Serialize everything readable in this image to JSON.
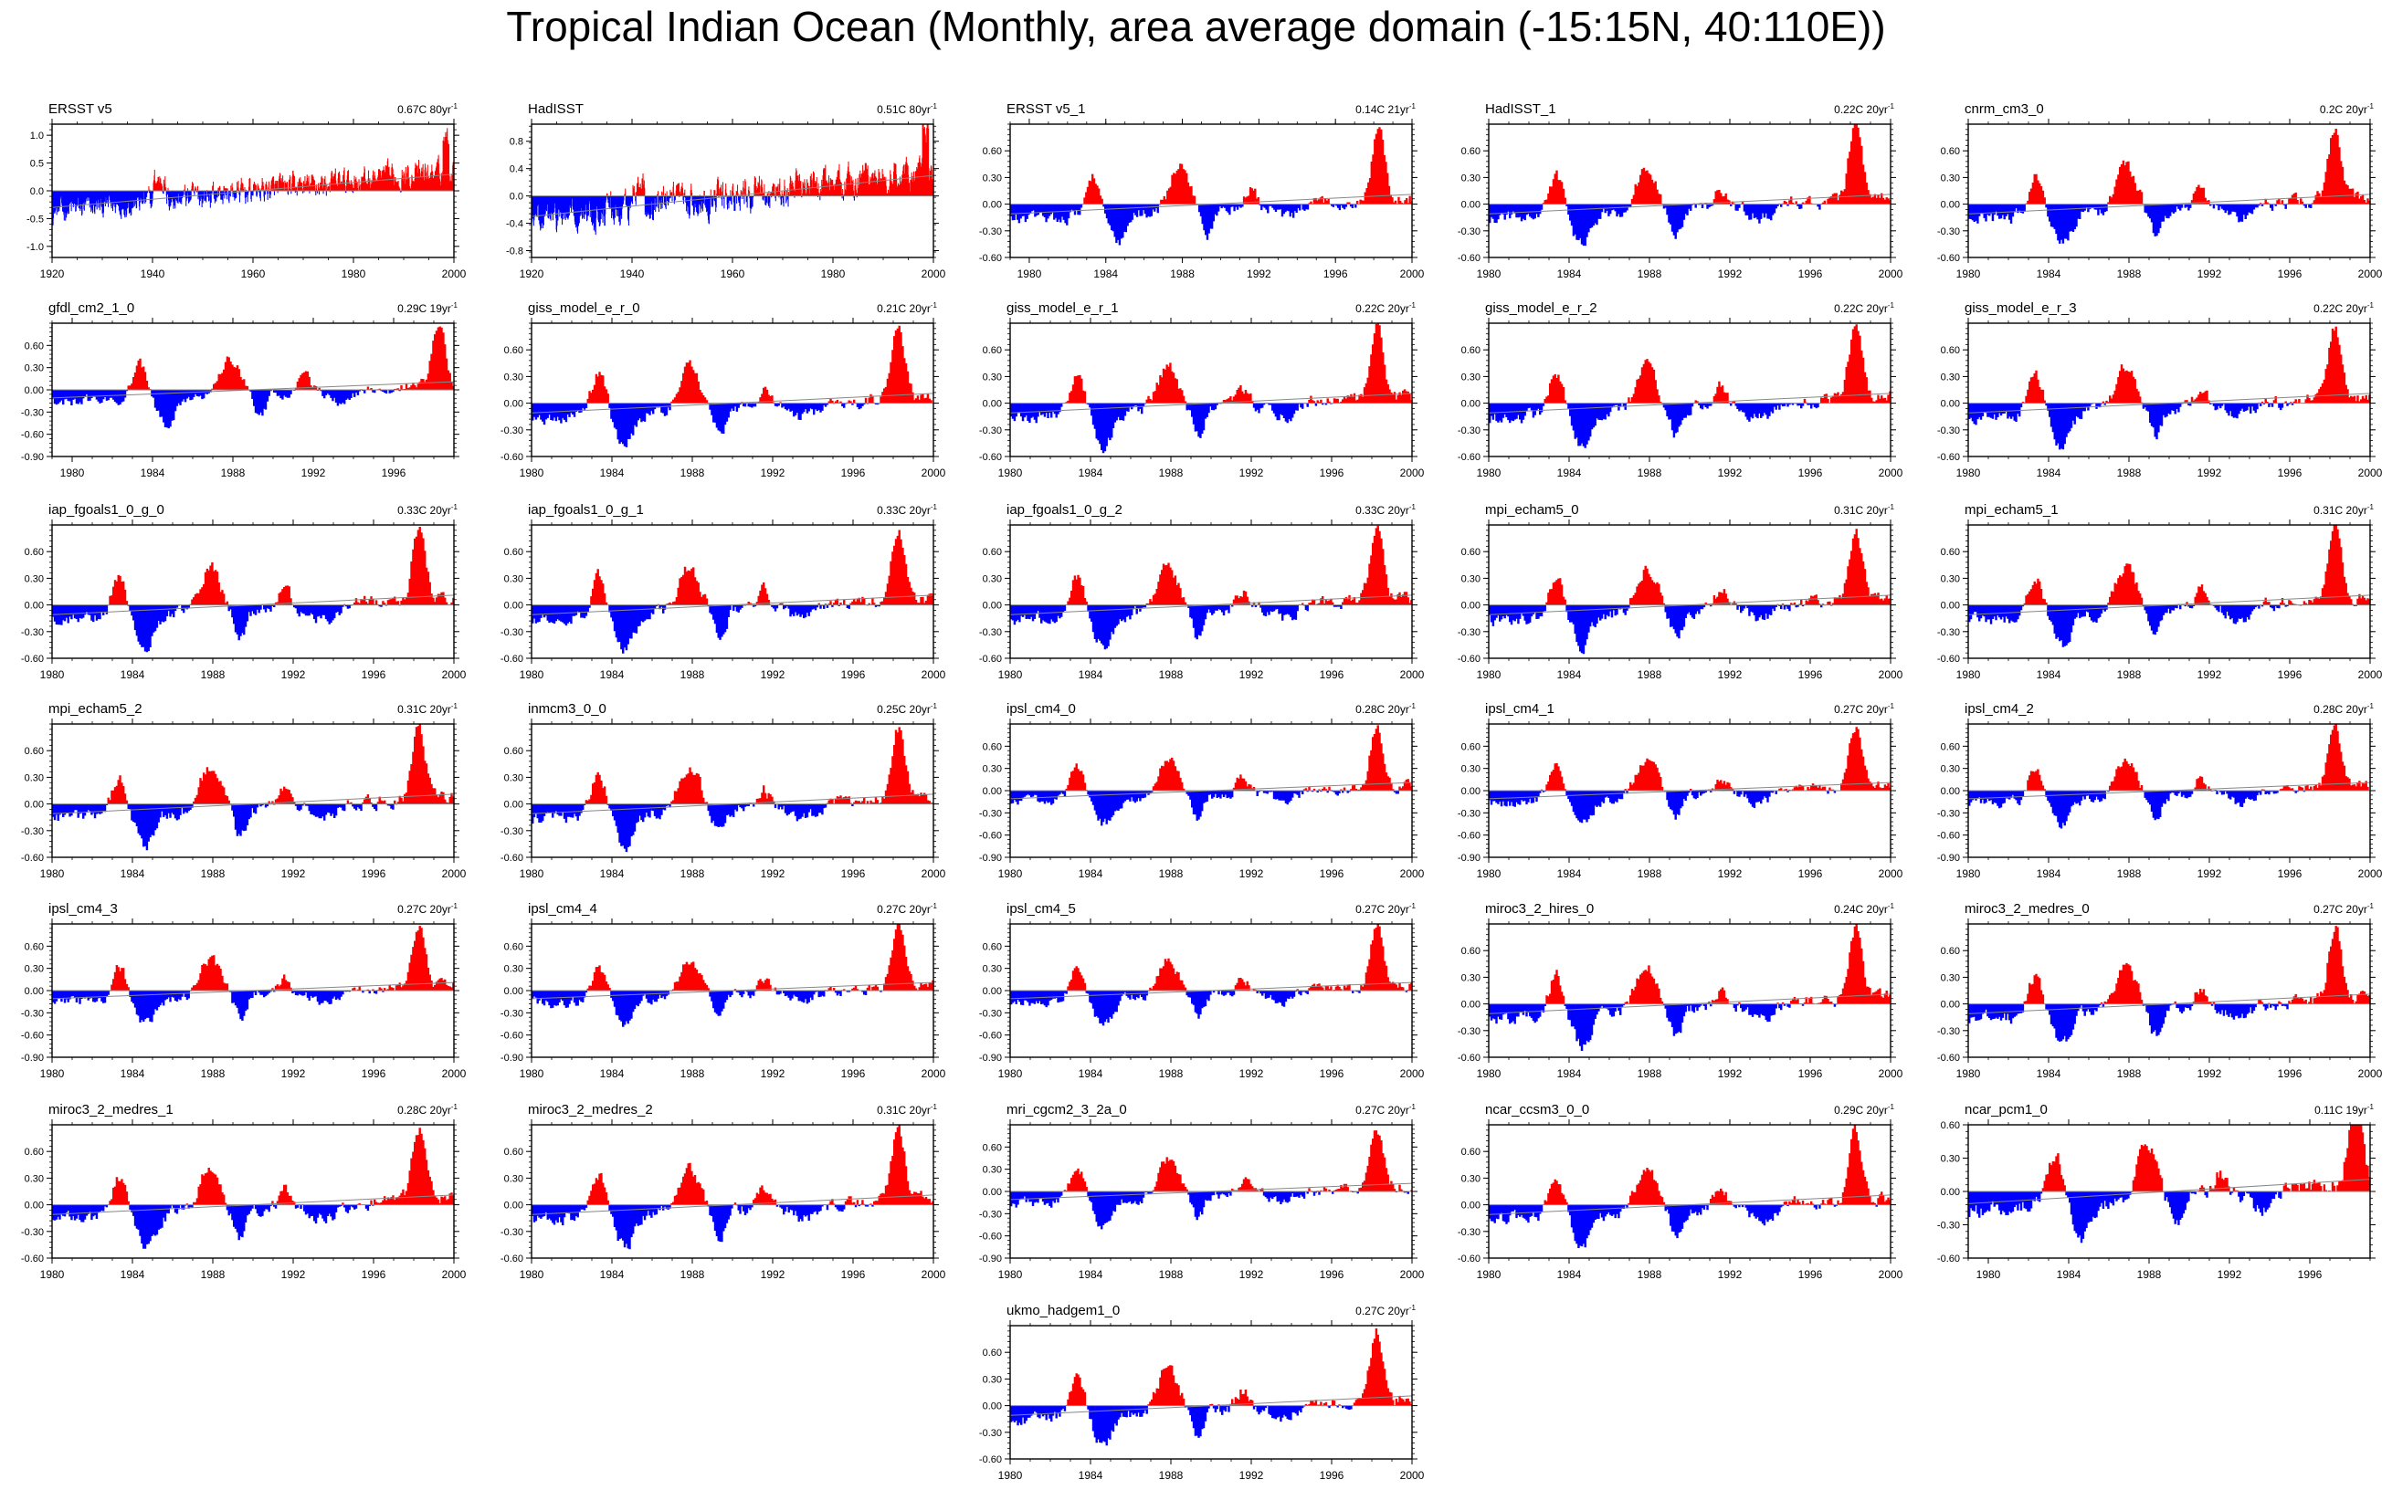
{
  "title": "Tropical Indian Ocean (Monthly, area average domain (-15:15N, 40:110E))",
  "colors": {
    "positive": "#ff0000",
    "negative": "#0000ff",
    "trend": "#888888",
    "axis": "#000000"
  },
  "chart_data": [
    {
      "type": "area",
      "name": "ERSST v5",
      "trend_label": "0.67C 80yr",
      "trend_label_sup": "-1",
      "xlim": [
        1920,
        2000
      ],
      "x_ticks": [
        1920,
        1940,
        1960,
        1980,
        2000
      ],
      "ylim": [
        -1.2,
        1.2
      ],
      "y_ticks": [
        -1.0,
        -0.5,
        0.0,
        0.5,
        1.0
      ],
      "y_tick_labels": [
        "-1.0",
        "-0.5",
        "0.0",
        "0.5",
        "1.0"
      ]
    },
    {
      "type": "area",
      "name": "HadISST",
      "trend_label": "0.51C 80yr",
      "trend_label_sup": "-1",
      "xlim": [
        1920,
        2000
      ],
      "x_ticks": [
        1920,
        1940,
        1960,
        1980,
        2000
      ],
      "ylim": [
        -0.9,
        1.05
      ],
      "y_ticks": [
        -0.8,
        -0.4,
        0.0,
        0.4,
        0.8
      ],
      "y_tick_labels": [
        "-0.8",
        "-0.4",
        "0.0",
        "0.4",
        "0.8"
      ]
    },
    {
      "type": "area",
      "name": "ERSST v5_1",
      "trend_label": "0.14C 21yr",
      "trend_label_sup": "-1",
      "xlim": [
        1979,
        2000
      ],
      "x_ticks": [
        1980,
        1984,
        1988,
        1992,
        1996,
        2000
      ],
      "ylim": [
        -0.6,
        0.9
      ],
      "y_ticks": [
        -0.6,
        -0.3,
        0.0,
        0.3,
        0.6
      ],
      "y_tick_labels": [
        "-0.60",
        "-0.30",
        "0.00",
        "0.30",
        "0.60"
      ]
    },
    {
      "type": "area",
      "name": "HadISST_1",
      "trend_label": "0.22C 20yr",
      "trend_label_sup": "-1",
      "xlim": [
        1980,
        2000
      ],
      "x_ticks": [
        1980,
        1984,
        1988,
        1992,
        1996,
        2000
      ],
      "ylim": [
        -0.6,
        0.9
      ],
      "y_ticks": [
        -0.6,
        -0.3,
        0.0,
        0.3,
        0.6
      ],
      "y_tick_labels": [
        "-0.60",
        "-0.30",
        "0.00",
        "0.30",
        "0.60"
      ]
    },
    {
      "type": "area",
      "name": "cnrm_cm3_0",
      "trend_label": "0.2C 20yr",
      "trend_label_sup": "-1",
      "xlim": [
        1980,
        2000
      ],
      "x_ticks": [
        1980,
        1984,
        1988,
        1992,
        1996,
        2000
      ],
      "ylim": [
        -0.6,
        0.9
      ],
      "y_ticks": [
        -0.6,
        -0.3,
        0.0,
        0.3,
        0.6
      ],
      "y_tick_labels": [
        "-0.60",
        "-0.30",
        "0.00",
        "0.30",
        "0.60"
      ]
    },
    {
      "type": "area",
      "name": "gfdl_cm2_1_0",
      "trend_label": "0.29C 19yr",
      "trend_label_sup": "-1",
      "xlim": [
        1979,
        1999
      ],
      "x_ticks": [
        1980,
        1984,
        1988,
        1992,
        1996
      ],
      "ylim": [
        -0.9,
        0.9
      ],
      "y_ticks": [
        -0.9,
        -0.6,
        -0.3,
        0.0,
        0.3,
        0.6
      ],
      "y_tick_labels": [
        "-0.90",
        "-0.60",
        "-0.30",
        "0.00",
        "0.30",
        "0.60"
      ]
    },
    {
      "type": "area",
      "name": "giss_model_e_r_0",
      "trend_label": "0.21C 20yr",
      "trend_label_sup": "-1",
      "xlim": [
        1980,
        2000
      ],
      "x_ticks": [
        1980,
        1984,
        1988,
        1992,
        1996,
        2000
      ],
      "ylim": [
        -0.6,
        0.9
      ],
      "y_ticks": [
        -0.6,
        -0.3,
        0.0,
        0.3,
        0.6
      ],
      "y_tick_labels": [
        "-0.60",
        "-0.30",
        "0.00",
        "0.30",
        "0.60"
      ]
    },
    {
      "type": "area",
      "name": "giss_model_e_r_1",
      "trend_label": "0.22C 20yr",
      "trend_label_sup": "-1",
      "xlim": [
        1980,
        2000
      ],
      "x_ticks": [
        1980,
        1984,
        1988,
        1992,
        1996,
        2000
      ],
      "ylim": [
        -0.6,
        0.9
      ],
      "y_ticks": [
        -0.6,
        -0.3,
        0.0,
        0.3,
        0.6
      ],
      "y_tick_labels": [
        "-0.60",
        "-0.30",
        "0.00",
        "0.30",
        "0.60"
      ]
    },
    {
      "type": "area",
      "name": "giss_model_e_r_2",
      "trend_label": "0.22C 20yr",
      "trend_label_sup": "-1",
      "xlim": [
        1980,
        2000
      ],
      "x_ticks": [
        1980,
        1984,
        1988,
        1992,
        1996,
        2000
      ],
      "ylim": [
        -0.6,
        0.9
      ],
      "y_ticks": [
        -0.6,
        -0.3,
        0.0,
        0.3,
        0.6
      ],
      "y_tick_labels": [
        "-0.60",
        "-0.30",
        "0.00",
        "0.30",
        "0.60"
      ]
    },
    {
      "type": "area",
      "name": "giss_model_e_r_3",
      "trend_label": "0.22C 20yr",
      "trend_label_sup": "-1",
      "xlim": [
        1980,
        2000
      ],
      "x_ticks": [
        1980,
        1984,
        1988,
        1992,
        1996,
        2000
      ],
      "ylim": [
        -0.6,
        0.9
      ],
      "y_ticks": [
        -0.6,
        -0.3,
        0.0,
        0.3,
        0.6
      ],
      "y_tick_labels": [
        "-0.60",
        "-0.30",
        "0.00",
        "0.30",
        "0.60"
      ]
    },
    {
      "type": "area",
      "name": "iap_fgoals1_0_g_0",
      "trend_label": "0.33C 20yr",
      "trend_label_sup": "-1",
      "xlim": [
        1980,
        2000
      ],
      "x_ticks": [
        1980,
        1984,
        1988,
        1992,
        1996,
        2000
      ],
      "ylim": [
        -0.6,
        0.9
      ],
      "y_ticks": [
        -0.6,
        -0.3,
        0.0,
        0.3,
        0.6
      ],
      "y_tick_labels": [
        "-0.60",
        "-0.30",
        "0.00",
        "0.30",
        "0.60"
      ]
    },
    {
      "type": "area",
      "name": "iap_fgoals1_0_g_1",
      "trend_label": "0.33C 20yr",
      "trend_label_sup": "-1",
      "xlim": [
        1980,
        2000
      ],
      "x_ticks": [
        1980,
        1984,
        1988,
        1992,
        1996,
        2000
      ],
      "ylim": [
        -0.6,
        0.9
      ],
      "y_ticks": [
        -0.6,
        -0.3,
        0.0,
        0.3,
        0.6
      ],
      "y_tick_labels": [
        "-0.60",
        "-0.30",
        "0.00",
        "0.30",
        "0.60"
      ]
    },
    {
      "type": "area",
      "name": "iap_fgoals1_0_g_2",
      "trend_label": "0.33C 20yr",
      "trend_label_sup": "-1",
      "xlim": [
        1980,
        2000
      ],
      "x_ticks": [
        1980,
        1984,
        1988,
        1992,
        1996,
        2000
      ],
      "ylim": [
        -0.6,
        0.9
      ],
      "y_ticks": [
        -0.6,
        -0.3,
        0.0,
        0.3,
        0.6
      ],
      "y_tick_labels": [
        "-0.60",
        "-0.30",
        "0.00",
        "0.30",
        "0.60"
      ]
    },
    {
      "type": "area",
      "name": "mpi_echam5_0",
      "trend_label": "0.31C 20yr",
      "trend_label_sup": "-1",
      "xlim": [
        1980,
        2000
      ],
      "x_ticks": [
        1980,
        1984,
        1988,
        1992,
        1996,
        2000
      ],
      "ylim": [
        -0.6,
        0.9
      ],
      "y_ticks": [
        -0.6,
        -0.3,
        0.0,
        0.3,
        0.6
      ],
      "y_tick_labels": [
        "-0.60",
        "-0.30",
        "0.00",
        "0.30",
        "0.60"
      ]
    },
    {
      "type": "area",
      "name": "mpi_echam5_1",
      "trend_label": "0.31C 20yr",
      "trend_label_sup": "-1",
      "xlim": [
        1980,
        2000
      ],
      "x_ticks": [
        1980,
        1984,
        1988,
        1992,
        1996,
        2000
      ],
      "ylim": [
        -0.6,
        0.9
      ],
      "y_ticks": [
        -0.6,
        -0.3,
        0.0,
        0.3,
        0.6
      ],
      "y_tick_labels": [
        "-0.60",
        "-0.30",
        "0.00",
        "0.30",
        "0.60"
      ]
    },
    {
      "type": "area",
      "name": "mpi_echam5_2",
      "trend_label": "0.31C 20yr",
      "trend_label_sup": "-1",
      "xlim": [
        1980,
        2000
      ],
      "x_ticks": [
        1980,
        1984,
        1988,
        1992,
        1996,
        2000
      ],
      "ylim": [
        -0.6,
        0.9
      ],
      "y_ticks": [
        -0.6,
        -0.3,
        0.0,
        0.3,
        0.6
      ],
      "y_tick_labels": [
        "-0.60",
        "-0.30",
        "0.00",
        "0.30",
        "0.60"
      ]
    },
    {
      "type": "area",
      "name": "inmcm3_0_0",
      "trend_label": "0.25C 20yr",
      "trend_label_sup": "-1",
      "xlim": [
        1980,
        2000
      ],
      "x_ticks": [
        1980,
        1984,
        1988,
        1992,
        1996,
        2000
      ],
      "ylim": [
        -0.6,
        0.9
      ],
      "y_ticks": [
        -0.6,
        -0.3,
        0.0,
        0.3,
        0.6
      ],
      "y_tick_labels": [
        "-0.60",
        "-0.30",
        "0.00",
        "0.30",
        "0.60"
      ]
    },
    {
      "type": "area",
      "name": "ipsl_cm4_0",
      "trend_label": "0.28C 20yr",
      "trend_label_sup": "-1",
      "xlim": [
        1980,
        2000
      ],
      "x_ticks": [
        1980,
        1984,
        1988,
        1992,
        1996,
        2000
      ],
      "ylim": [
        -0.9,
        0.9
      ],
      "y_ticks": [
        -0.9,
        -0.6,
        -0.3,
        0.0,
        0.3,
        0.6
      ],
      "y_tick_labels": [
        "-0.90",
        "-0.60",
        "-0.30",
        "0.00",
        "0.30",
        "0.60"
      ]
    },
    {
      "type": "area",
      "name": "ipsl_cm4_1",
      "trend_label": "0.27C 20yr",
      "trend_label_sup": "-1",
      "xlim": [
        1980,
        2000
      ],
      "x_ticks": [
        1980,
        1984,
        1988,
        1992,
        1996,
        2000
      ],
      "ylim": [
        -0.9,
        0.9
      ],
      "y_ticks": [
        -0.9,
        -0.6,
        -0.3,
        0.0,
        0.3,
        0.6
      ],
      "y_tick_labels": [
        "-0.90",
        "-0.60",
        "-0.30",
        "0.00",
        "0.30",
        "0.60"
      ]
    },
    {
      "type": "area",
      "name": "ipsl_cm4_2",
      "trend_label": "0.28C 20yr",
      "trend_label_sup": "-1",
      "xlim": [
        1980,
        2000
      ],
      "x_ticks": [
        1980,
        1984,
        1988,
        1992,
        1996,
        2000
      ],
      "ylim": [
        -0.9,
        0.9
      ],
      "y_ticks": [
        -0.9,
        -0.6,
        -0.3,
        0.0,
        0.3,
        0.6
      ],
      "y_tick_labels": [
        "-0.90",
        "-0.60",
        "-0.30",
        "0.00",
        "0.30",
        "0.60"
      ]
    },
    {
      "type": "area",
      "name": "ipsl_cm4_3",
      "trend_label": "0.27C 20yr",
      "trend_label_sup": "-1",
      "xlim": [
        1980,
        2000
      ],
      "x_ticks": [
        1980,
        1984,
        1988,
        1992,
        1996,
        2000
      ],
      "ylim": [
        -0.9,
        0.9
      ],
      "y_ticks": [
        -0.9,
        -0.6,
        -0.3,
        0.0,
        0.3,
        0.6
      ],
      "y_tick_labels": [
        "-0.90",
        "-0.60",
        "-0.30",
        "0.00",
        "0.30",
        "0.60"
      ]
    },
    {
      "type": "area",
      "name": "ipsl_cm4_4",
      "trend_label": "0.27C 20yr",
      "trend_label_sup": "-1",
      "xlim": [
        1980,
        2000
      ],
      "x_ticks": [
        1980,
        1984,
        1988,
        1992,
        1996,
        2000
      ],
      "ylim": [
        -0.9,
        0.9
      ],
      "y_ticks": [
        -0.9,
        -0.6,
        -0.3,
        0.0,
        0.3,
        0.6
      ],
      "y_tick_labels": [
        "-0.90",
        "-0.60",
        "-0.30",
        "0.00",
        "0.30",
        "0.60"
      ]
    },
    {
      "type": "area",
      "name": "ipsl_cm4_5",
      "trend_label": "0.27C 20yr",
      "trend_label_sup": "-1",
      "xlim": [
        1980,
        2000
      ],
      "x_ticks": [
        1980,
        1984,
        1988,
        1992,
        1996,
        2000
      ],
      "ylim": [
        -0.9,
        0.9
      ],
      "y_ticks": [
        -0.9,
        -0.6,
        -0.3,
        0.0,
        0.3,
        0.6
      ],
      "y_tick_labels": [
        "-0.90",
        "-0.60",
        "-0.30",
        "0.00",
        "0.30",
        "0.60"
      ]
    },
    {
      "type": "area",
      "name": "miroc3_2_hires_0",
      "trend_label": "0.24C 20yr",
      "trend_label_sup": "-1",
      "xlim": [
        1980,
        2000
      ],
      "x_ticks": [
        1980,
        1984,
        1988,
        1992,
        1996,
        2000
      ],
      "ylim": [
        -0.6,
        0.9
      ],
      "y_ticks": [
        -0.6,
        -0.3,
        0.0,
        0.3,
        0.6
      ],
      "y_tick_labels": [
        "-0.60",
        "-0.30",
        "0.00",
        "0.30",
        "0.60"
      ]
    },
    {
      "type": "area",
      "name": "miroc3_2_medres_0",
      "trend_label": "0.27C 20yr",
      "trend_label_sup": "-1",
      "xlim": [
        1980,
        2000
      ],
      "x_ticks": [
        1980,
        1984,
        1988,
        1992,
        1996,
        2000
      ],
      "ylim": [
        -0.6,
        0.9
      ],
      "y_ticks": [
        -0.6,
        -0.3,
        0.0,
        0.3,
        0.6
      ],
      "y_tick_labels": [
        "-0.60",
        "-0.30",
        "0.00",
        "0.30",
        "0.60"
      ]
    },
    {
      "type": "area",
      "name": "miroc3_2_medres_1",
      "trend_label": "0.28C 20yr",
      "trend_label_sup": "-1",
      "xlim": [
        1980,
        2000
      ],
      "x_ticks": [
        1980,
        1984,
        1988,
        1992,
        1996,
        2000
      ],
      "ylim": [
        -0.6,
        0.9
      ],
      "y_ticks": [
        -0.6,
        -0.3,
        0.0,
        0.3,
        0.6
      ],
      "y_tick_labels": [
        "-0.60",
        "-0.30",
        "0.00",
        "0.30",
        "0.60"
      ]
    },
    {
      "type": "area",
      "name": "miroc3_2_medres_2",
      "trend_label": "0.31C 20yr",
      "trend_label_sup": "-1",
      "xlim": [
        1980,
        2000
      ],
      "x_ticks": [
        1980,
        1984,
        1988,
        1992,
        1996,
        2000
      ],
      "ylim": [
        -0.6,
        0.9
      ],
      "y_ticks": [
        -0.6,
        -0.3,
        0.0,
        0.3,
        0.6
      ],
      "y_tick_labels": [
        "-0.60",
        "-0.30",
        "0.00",
        "0.30",
        "0.60"
      ]
    },
    {
      "type": "area",
      "name": "mri_cgcm2_3_2a_0",
      "trend_label": "0.27C 20yr",
      "trend_label_sup": "-1",
      "xlim": [
        1980,
        2000
      ],
      "x_ticks": [
        1980,
        1984,
        1988,
        1992,
        1996,
        2000
      ],
      "ylim": [
        -0.9,
        0.9
      ],
      "y_ticks": [
        -0.9,
        -0.6,
        -0.3,
        0.0,
        0.3,
        0.6
      ],
      "y_tick_labels": [
        "-0.90",
        "-0.60",
        "-0.30",
        "0.00",
        "0.30",
        "0.60"
      ]
    },
    {
      "type": "area",
      "name": "ncar_ccsm3_0_0",
      "trend_label": "0.29C 20yr",
      "trend_label_sup": "-1",
      "xlim": [
        1980,
        2000
      ],
      "x_ticks": [
        1980,
        1984,
        1988,
        1992,
        1996,
        2000
      ],
      "ylim": [
        -0.6,
        0.9
      ],
      "y_ticks": [
        -0.6,
        -0.3,
        0.0,
        0.3,
        0.6
      ],
      "y_tick_labels": [
        "-0.60",
        "-0.30",
        "0.00",
        "0.30",
        "0.60"
      ]
    },
    {
      "type": "area",
      "name": "ncar_pcm1_0",
      "trend_label": "0.11C 19yr",
      "trend_label_sup": "-1",
      "xlim": [
        1979,
        1999
      ],
      "x_ticks": [
        1980,
        1984,
        1988,
        1992,
        1996
      ],
      "ylim": [
        -0.6,
        0.6
      ],
      "y_ticks": [
        -0.6,
        -0.3,
        0.0,
        0.3,
        0.6
      ],
      "y_tick_labels": [
        "-0.60",
        "-0.30",
        "0.00",
        "0.30",
        "0.60"
      ]
    },
    {
      "type": "area",
      "name": "ukmo_hadgem1_0",
      "trend_label": "0.27C 20yr",
      "trend_label_sup": "-1",
      "xlim": [
        1980,
        2000
      ],
      "x_ticks": [
        1980,
        1984,
        1988,
        1992,
        1996,
        2000
      ],
      "ylim": [
        -0.6,
        0.9
      ],
      "y_ticks": [
        -0.6,
        -0.3,
        0.0,
        0.3,
        0.6
      ],
      "y_tick_labels": [
        "-0.60",
        "-0.30",
        "0.00",
        "0.30",
        "0.60"
      ]
    }
  ]
}
